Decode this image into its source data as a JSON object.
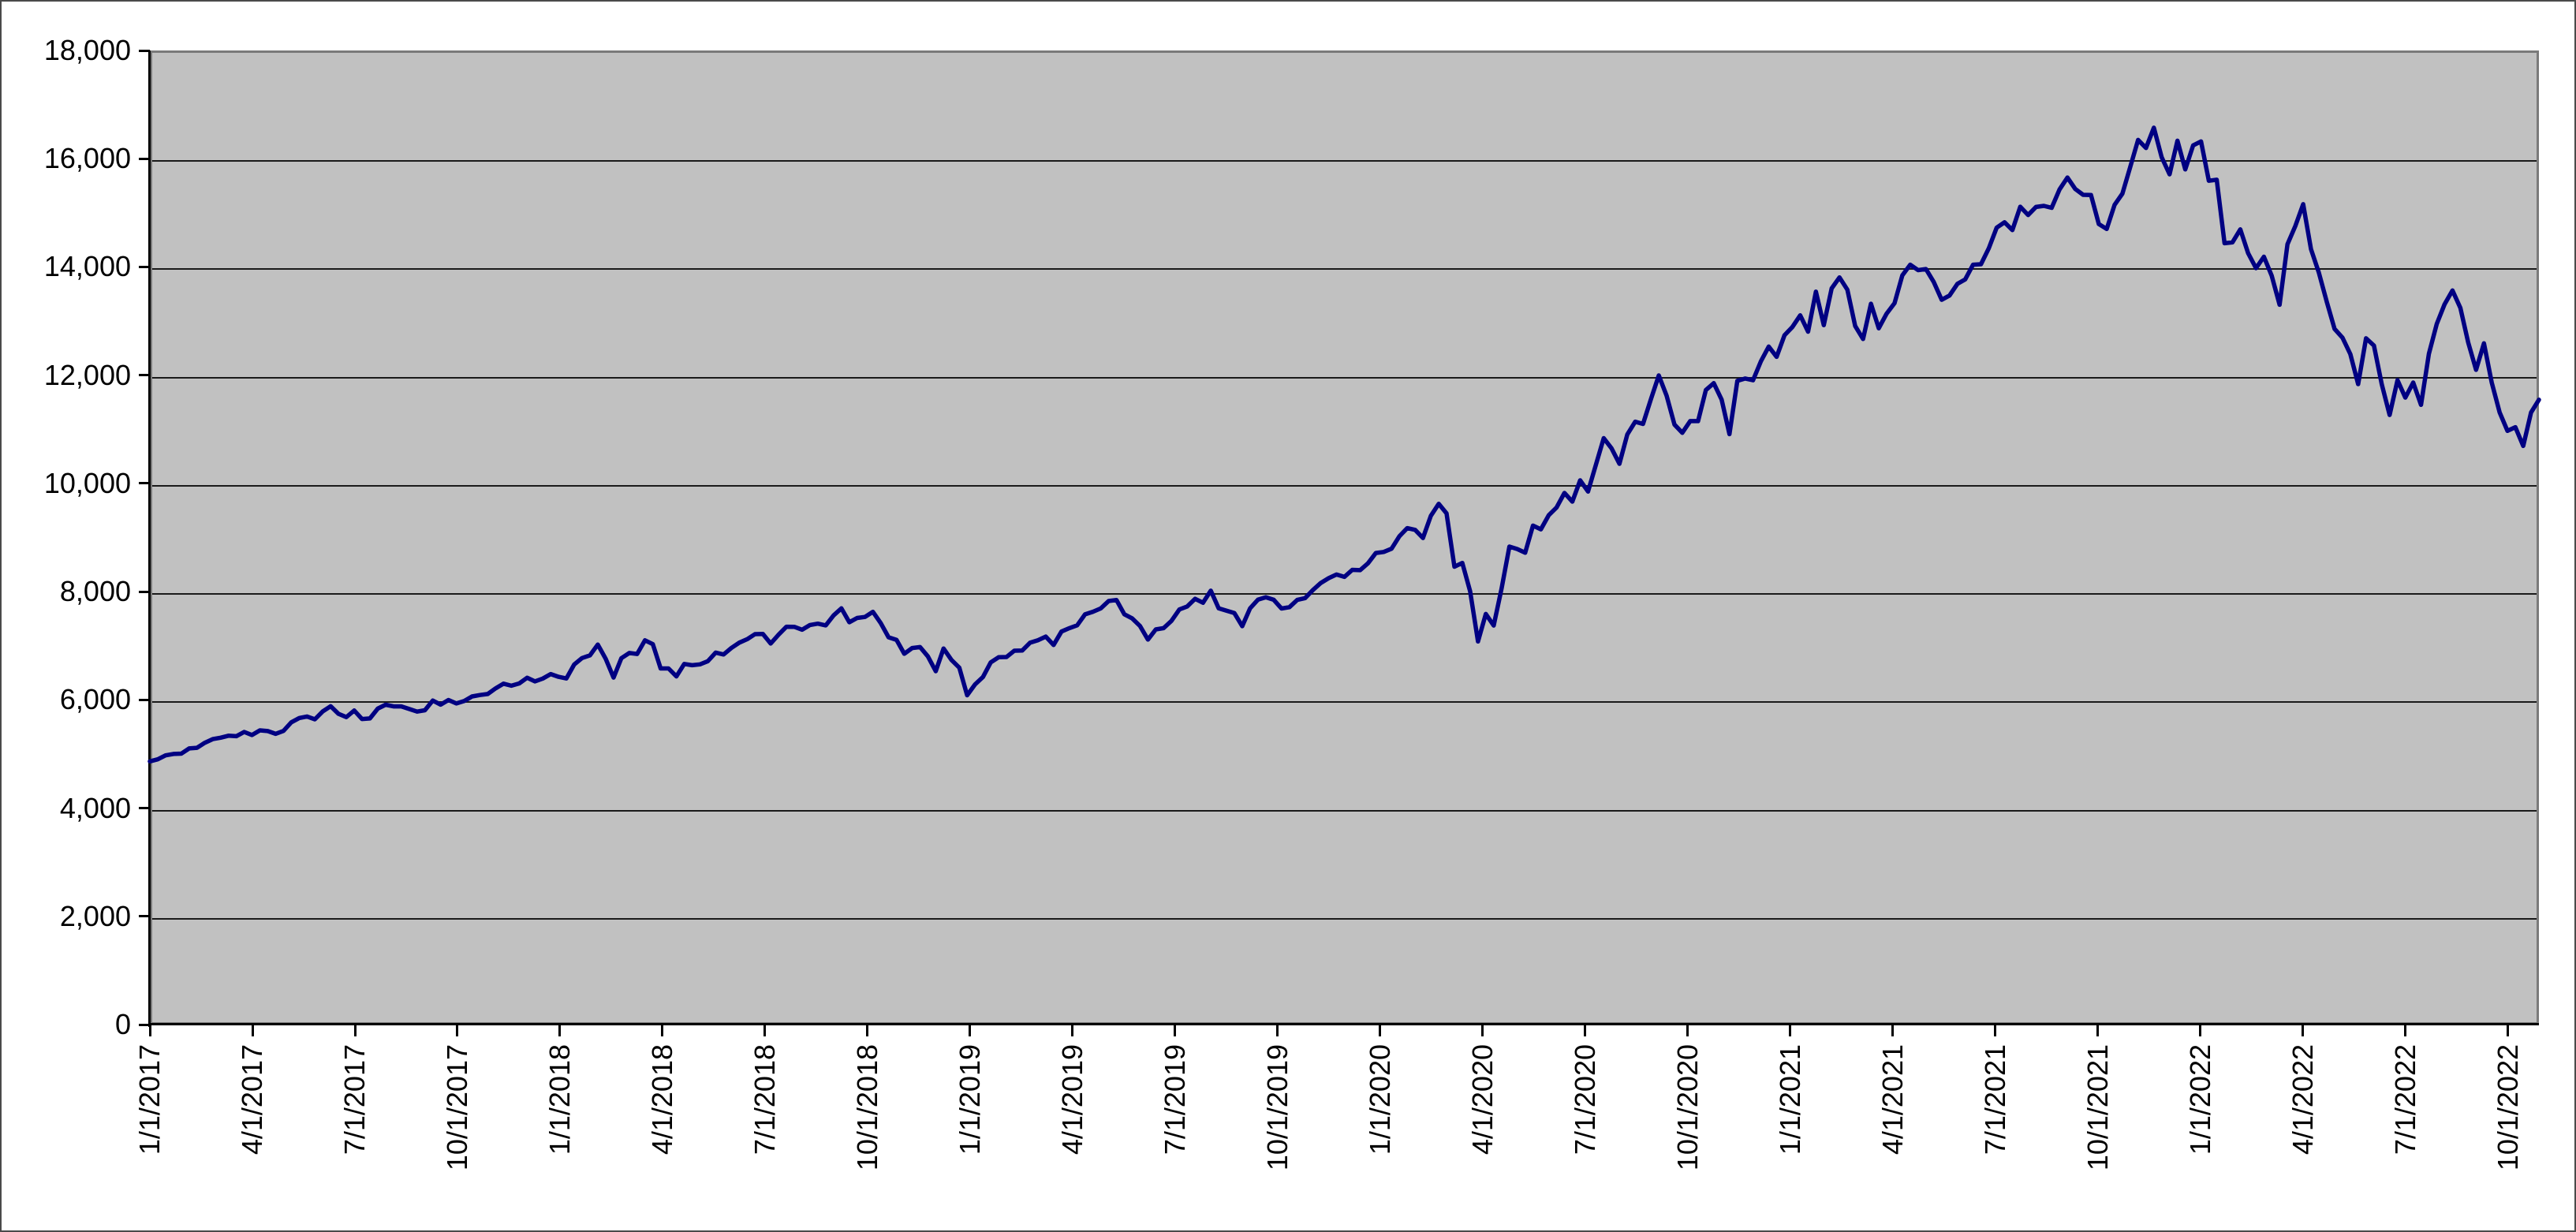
{
  "chart_data": {
    "type": "line",
    "title": "",
    "grid": "horizontal",
    "legend": "none",
    "colors": {
      "line": "#000082",
      "plot_background": "#C1C1C1",
      "chart_background": "#FFFFFF",
      "plot_border": "#7A7A7A",
      "axis": "#000000",
      "gridline": "#1A1A1A",
      "chart_border": "#4A4A4A",
      "label_text": "#000000"
    },
    "y_axis": {
      "min": 0,
      "max": 18000,
      "tick_interval": 2000,
      "tick_labels": [
        "18,000",
        "16,000",
        "14,000",
        "12,000",
        "10,000",
        "8,000",
        "6,000",
        "4,000",
        "2,000",
        "0"
      ]
    },
    "x_axis": {
      "tick_labels": [
        "1/1/2017",
        "4/1/2017",
        "7/1/2017",
        "10/1/2017",
        "1/1/2018",
        "4/1/2018",
        "7/1/2018",
        "10/1/2018",
        "1/1/2019",
        "4/1/2019",
        "7/1/2019",
        "10/1/2019",
        "1/1/2020",
        "4/1/2020",
        "7/1/2020",
        "10/1/2020",
        "1/1/2021",
        "4/1/2021",
        "7/1/2021",
        "10/1/2021",
        "1/1/2022",
        "4/1/2022",
        "7/1/2022",
        "10/1/2022"
      ],
      "label_rotation_degrees": -90,
      "weeks_per_quarter": 13.045
    },
    "series_interval": "weekly",
    "start_label": "1/1/2017",
    "values": [
      4863,
      4901,
      4974,
      5001,
      5007,
      5103,
      5114,
      5207,
      5274,
      5301,
      5337,
      5329,
      5408,
      5350,
      5436,
      5423,
      5373,
      5426,
      5585,
      5664,
      5693,
      5640,
      5788,
      5882,
      5742,
      5681,
      5803,
      5647,
      5656,
      5838,
      5910,
      5880,
      5880,
      5831,
      5784,
      5808,
      5988,
      5912,
      5998,
      5933,
      5979,
      6063,
      6089,
      6109,
      6213,
      6300,
      6261,
      6303,
      6409,
      6341,
      6394,
      6477,
      6426,
      6396,
      6653,
      6773,
      6822,
      7022,
      6760,
      6412,
      6770,
      6866,
      6847,
      7101,
      7030,
      6580,
      6581,
      6433,
      6663,
      6640,
      6656,
      6715,
      6873,
      6839,
      6960,
      7057,
      7122,
      7215,
      7218,
      7041,
      7205,
      7352,
      7350,
      7296,
      7383,
      7408,
      7376,
      7562,
      7691,
      7434,
      7513,
      7532,
      7627,
      7420,
      7157,
      7110,
      6852,
      6958,
      6976,
      6803,
      6529,
      6949,
      6738,
      6594,
      6085,
      6285,
      6422,
      6693,
      6787,
      6792,
      6909,
      6911,
      7055,
      7103,
      7169,
      7015,
      7263,
      7326,
      7378,
      7581,
      7628,
      7689,
      7826,
      7846,
      7582,
      7504,
      7364,
      7114,
      7302,
      7325,
      7461,
      7671,
      7726,
      7867,
      7795,
      8017,
      7692,
      7647,
      7604,
      7362,
      7691,
      7852,
      7895,
      7850,
      7688,
      7713,
      7847,
      7881,
      8029,
      8161,
      8250,
      8316,
      8272,
      8403,
      8397,
      8523,
      8715,
      8733,
      8793,
      9023,
      9173,
      9141,
      8991,
      9401,
      9623,
      9446,
      8461,
      8530,
      8007,
      7079,
      7588,
      7373,
      8059,
      8832,
      8787,
      8718,
      9220,
      9152,
      9413,
      9555,
      9824,
      9663,
      10056,
      9849,
      10341,
      10836,
      10645,
      10363,
      10905,
      11139,
      11099,
      11555,
      11995,
      11622,
      11087,
      10936,
      11151,
      11151,
      11726,
      11852,
      11548,
      10911,
      11895,
      11938,
      11906,
      12258,
      12528,
      12339,
      12738,
      12888,
      13106,
      12804,
      13543,
      12925,
      13604,
      13807,
      13580,
      12909,
      12668,
      13320,
      12867,
      13138,
      13330,
      13845,
      14042,
      13941,
      13962,
      13719,
      13393,
      13471,
      13687,
      13770,
      14041,
      14050,
      14345,
      14727,
      14826,
      14681,
      15112,
      14960,
      15109,
      15129,
      15093,
      15432,
      15652,
      15440,
      15333,
      15329,
      14792,
      14702,
      15147,
      15355,
      15850,
      16347,
      16199,
      16573,
      16026,
      15712,
      16332,
      15802,
      16247,
      16320,
      15592,
      15611,
      14438,
      14454,
      14694,
      14254,
      13977,
      14189,
      13837,
      13301,
      14420,
      14754,
      15160,
      14328,
      13893,
      13357,
      12855,
      12694,
      12388,
      11835,
      12681,
      12548,
      11833,
      11265,
      11908,
      11586,
      11864,
      11452,
      12396,
      12948,
      13311,
      13565,
      13243,
      12606,
      12098,
      12588,
      11861,
      11311,
      10971,
      11039,
      10692,
      11310,
      11546
    ]
  }
}
